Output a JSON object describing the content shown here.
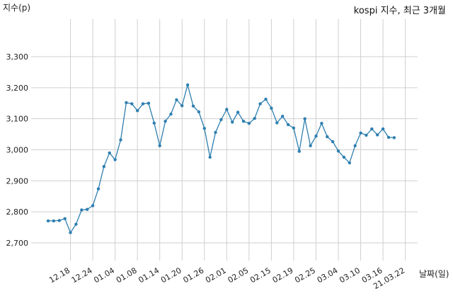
{
  "chart_data": {
    "type": "line",
    "title": "kospi 지수, 최근 3개월",
    "ylabel": "지수(p)",
    "xlabel": "날짜(일)",
    "ylim": [
      2700,
      3300
    ],
    "yticks": [
      2700,
      2800,
      2900,
      3000,
      3100,
      3200,
      3300
    ],
    "ytick_labels": [
      "2,700",
      "2,800",
      "2,900",
      "3,000",
      "3,100",
      "3,200",
      "3,300"
    ],
    "xtick_labels": [
      "12.18",
      "12.24",
      "01.04",
      "01.08",
      "01.14",
      "01.20",
      "01.26",
      "02.01",
      "02.05",
      "02.15",
      "02.19",
      "02.25",
      "03.04",
      "03.10",
      "03.16",
      "21.03.22"
    ],
    "xtick_index": [
      4,
      8,
      12,
      16,
      20,
      24,
      28,
      32,
      36,
      40,
      44,
      48,
      52,
      56,
      60,
      64
    ],
    "grid": true,
    "series_color": "#2e7fb0",
    "values": [
      2771,
      2771,
      2772,
      2778,
      2733,
      2760,
      2806,
      2808,
      2820,
      2874,
      2946,
      2990,
      2968,
      3032,
      3152,
      3148,
      3126,
      3148,
      3150,
      3086,
      3013,
      3092,
      3115,
      3161,
      3142,
      3209,
      3141,
      3122,
      3069,
      2976,
      3056,
      3097,
      3130,
      3089,
      3121,
      3092,
      3085,
      3101,
      3148,
      3163,
      3134,
      3087,
      3108,
      3081,
      3070,
      2995,
      3100,
      3013,
      3044,
      3085,
      3042,
      3026,
      2996,
      2976,
      2958,
      3013,
      3054,
      3047,
      3067,
      3048,
      3067,
      3040,
      3039
    ]
  }
}
